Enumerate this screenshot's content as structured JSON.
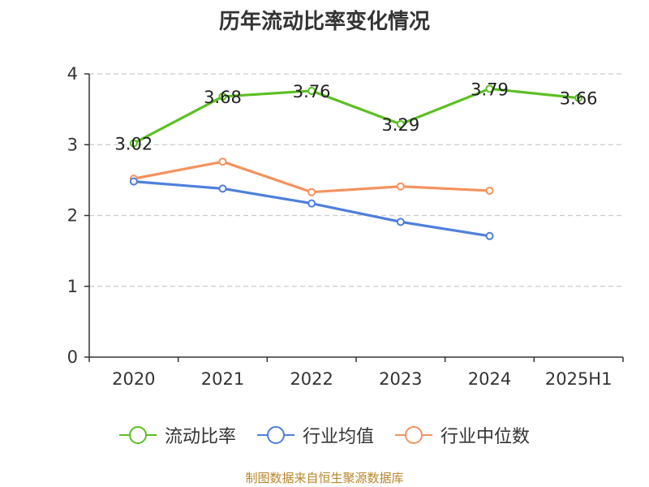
{
  "title": "历年流动比率变化情况",
  "source": "制图数据来自恒生聚源数据库",
  "chart_data": {
    "type": "line",
    "title": "历年流动比率变化情况",
    "categories": [
      "2020",
      "2021",
      "2022",
      "2023",
      "2024",
      "2025H1"
    ],
    "ylim": [
      0,
      4
    ],
    "yticks": [
      0,
      1,
      2,
      3,
      4
    ],
    "grid": true,
    "legend_position": "bottom",
    "series": [
      {
        "name": "流动比率",
        "color": "#5cbf23",
        "values": [
          3.02,
          3.68,
          3.76,
          3.29,
          3.79,
          3.66
        ],
        "labels": [
          "3.02",
          "3.68",
          "3.76",
          "3.29",
          "3.79",
          "3.66"
        ]
      },
      {
        "name": "行业均值",
        "color": "#4f7fdc",
        "values": [
          2.48,
          2.38,
          2.17,
          1.91,
          1.71,
          null
        ]
      },
      {
        "name": "行业中位数",
        "color": "#f5925e",
        "values": [
          2.52,
          2.76,
          2.33,
          2.41,
          2.35,
          null
        ]
      }
    ]
  }
}
